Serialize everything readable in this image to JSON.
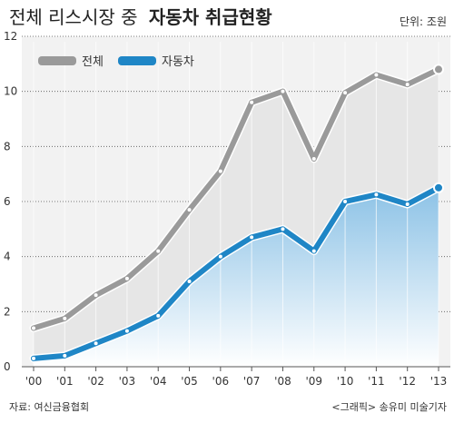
{
  "title": {
    "prefix": "전체 리스시장 중",
    "emphasis": "자동차 취급현황"
  },
  "unit": "단위: 조원",
  "source": "자료: 여신금융협회",
  "credit": "<그래픽> 송유미 미술기자",
  "colors": {
    "total_line": "#9a9a9a",
    "auto_line": "#1f86c6",
    "total_area": "#e6e6e6",
    "auto_area_top": "#8cc2e6",
    "auto_area_bottom": "#ffffff",
    "plot_bg": "#f2f2f2"
  },
  "chart_data": {
    "type": "area",
    "categories": [
      "'00",
      "'01",
      "'02",
      "'03",
      "'04",
      "'05",
      "'06",
      "'07",
      "'08",
      "'09",
      "'10",
      "'11",
      "'12",
      "'13"
    ],
    "series": [
      {
        "name": "전체",
        "values": [
          1.4,
          1.75,
          2.6,
          3.2,
          4.2,
          5.7,
          7.1,
          9.6,
          10.0,
          7.55,
          9.95,
          10.6,
          10.25,
          10.8
        ]
      },
      {
        "name": "자동차",
        "values": [
          0.3,
          0.4,
          0.85,
          1.3,
          1.85,
          3.1,
          4.0,
          4.7,
          5.0,
          4.2,
          6.0,
          6.25,
          5.9,
          6.5
        ]
      }
    ],
    "ylim": [
      0,
      12
    ],
    "yticks": [
      "0",
      "2",
      "4",
      "6",
      "8",
      "10",
      "12"
    ],
    "grid": true,
    "legend": "top-left"
  }
}
